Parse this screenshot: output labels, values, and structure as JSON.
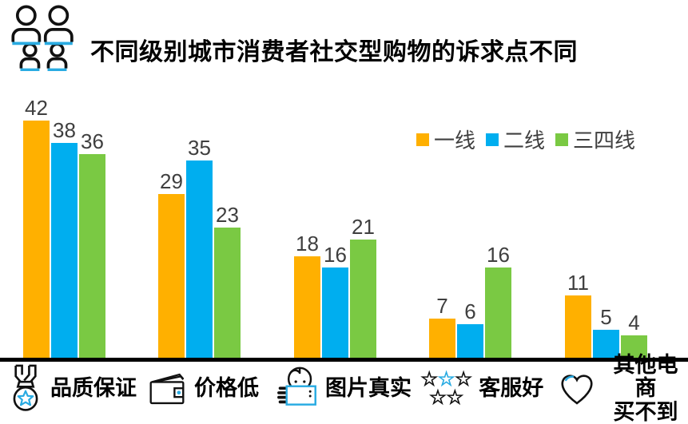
{
  "title": "不同级别城市消费者社交型购物的诉求点不同",
  "header": {
    "icon": "people-group-icon",
    "accent_color": "#29ABE2"
  },
  "chart_data": {
    "type": "bar",
    "title": "不同级别城市消费者社交型购物的诉求点不同",
    "categories": [
      {
        "label": "品质保证",
        "icon": "medal-icon"
      },
      {
        "label": "价格低",
        "icon": "wallet-icon"
      },
      {
        "label": "图片真实",
        "icon": "person-photo-icon"
      },
      {
        "label": "客服好",
        "icon": "stars-icon"
      },
      {
        "label": "其他电商\n买不到",
        "icon": "heart-icon"
      }
    ],
    "series": [
      {
        "name": "一线",
        "color": "#FFB000",
        "values": [
          42,
          29,
          18,
          7,
          11
        ]
      },
      {
        "name": "二线",
        "color": "#00AEEF",
        "values": [
          38,
          35,
          16,
          6,
          5
        ]
      },
      {
        "name": "三四线",
        "color": "#7AC943",
        "values": [
          36,
          23,
          21,
          16,
          4
        ]
      }
    ],
    "value_labels_shown": true,
    "value_label_color": "#3F3F3F",
    "ylim": [
      0,
      45
    ],
    "gridlines": false,
    "y_axis_visible": false,
    "baseline_color": "#000000",
    "legend_position": "top-right"
  },
  "colors": {
    "accent_blue": "#29ABE2",
    "background": "#FFFFFF",
    "title_text": "#000000"
  }
}
